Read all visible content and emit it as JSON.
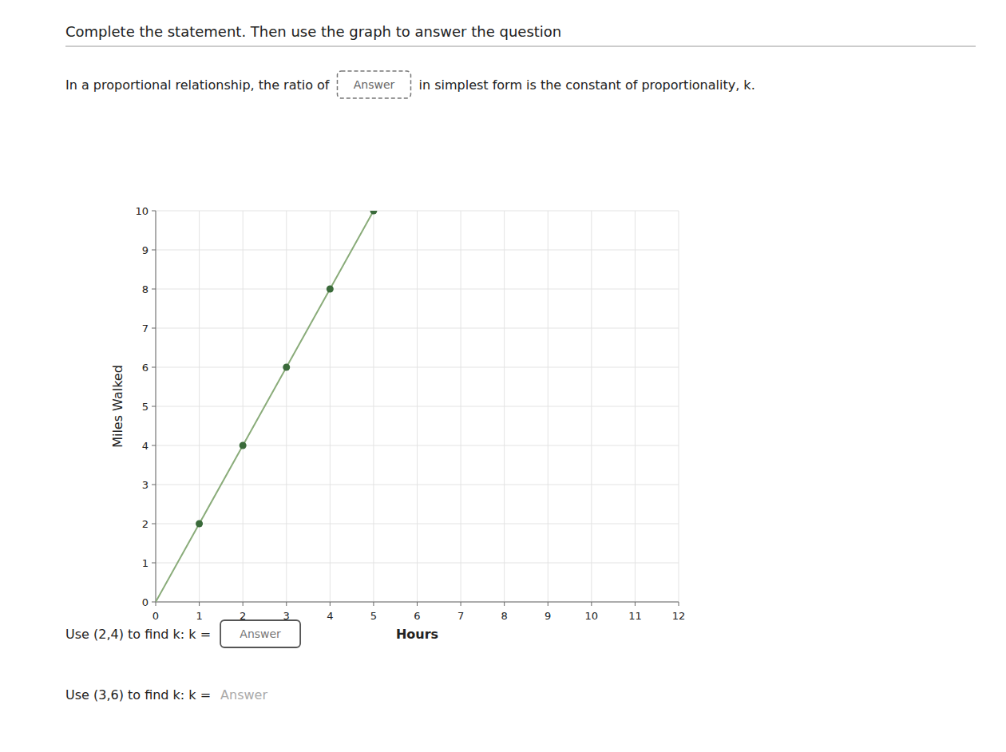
{
  "chart_data": {
    "type": "line",
    "title": "Complete the statement.  Then use the graph to answer the question",
    "x_label": "Hours",
    "y_label": "Miles Walked",
    "annotations": [
      "In a proportional relationship, the ratio of",
      "Answer",
      "in simplest form is the constant of proportionality, k.",
      "Use (2,4) to find k:  k =",
      "Answer",
      "Use (3,6) to find k:  k =",
      "Answer"
    ],
    "xlim": [
      0,
      12
    ],
    "ylim": [
      0,
      10
    ],
    "xticks": [
      0,
      1,
      2,
      3,
      4,
      5,
      6,
      7,
      8,
      9,
      10,
      11,
      12
    ],
    "yticks": [
      0,
      1,
      2,
      3,
      4,
      5,
      6,
      7,
      8,
      9,
      10
    ],
    "grid": true,
    "series": [
      {
        "type": "line",
        "color": "#8aac7a",
        "x": [
          0,
          1,
          2,
          3,
          4,
          5
        ],
        "values": [
          0,
          2,
          4,
          6,
          8,
          10
        ]
      },
      {
        "type": "scatter",
        "marker": "circle",
        "color": "#3a6a3a",
        "x": [
          1,
          2,
          3,
          4,
          5
        ],
        "values": [
          2,
          4,
          6,
          8,
          10
        ]
      }
    ]
  }
}
